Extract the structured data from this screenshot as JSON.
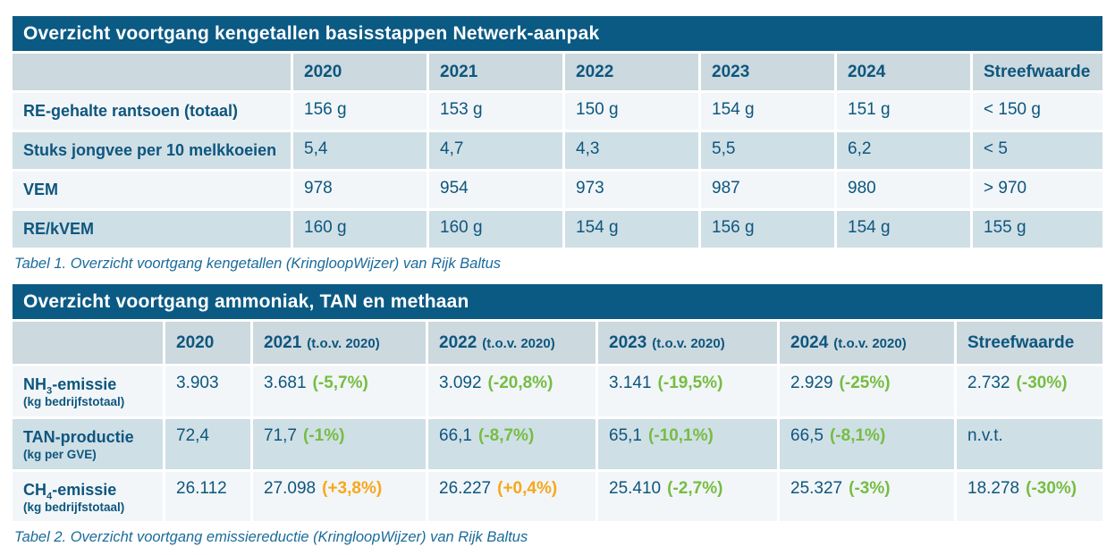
{
  "colors": {
    "title_bar_bg": "#0b5a84",
    "header_row_bg": "#ccd9df",
    "row_dark_bg": "#cfdfe6",
    "row_light_bg": "#f2f6f8",
    "text_blue": "#0e567e",
    "delta_good_green": "#76bd43",
    "delta_bad_orange": "#f7a71c",
    "caption_blue": "#1a6b9b"
  },
  "table1": {
    "title": "Overzicht voortgang kengetallen basisstappen Netwerk-aanpak",
    "columns": [
      "",
      "2020",
      "2021",
      "2022",
      "2023",
      "2024",
      "Streefwaarde"
    ],
    "rows": [
      {
        "label": "RE-gehalte rantsoen (totaal)",
        "values": [
          "156 g",
          "153 g",
          "150 g",
          "154 g",
          "151 g",
          "< 150 g"
        ]
      },
      {
        "label": "Stuks jongvee per 10 melkkoeien",
        "values": [
          "5,4",
          "4,7",
          "4,3",
          "5,5",
          "6,2",
          "< 5"
        ]
      },
      {
        "label": "VEM",
        "values": [
          "978",
          "954",
          "973",
          "987",
          "980",
          "> 970"
        ]
      },
      {
        "label": "RE/kVEM",
        "values": [
          "160 g",
          "160 g",
          "154 g",
          "156 g",
          "154 g",
          "155 g"
        ]
      }
    ],
    "caption": "Tabel 1. Overzicht voortgang kengetallen (KringloopWijzer) van Rijk Baltus"
  },
  "table2": {
    "title": "Overzicht voortgang ammoniak, TAN en methaan",
    "columns": [
      {
        "year": "",
        "note": ""
      },
      {
        "year": "2020",
        "note": ""
      },
      {
        "year": "2021",
        "note": "(t.o.v. 2020)"
      },
      {
        "year": "2022",
        "note": "(t.o.v. 2020)"
      },
      {
        "year": "2023",
        "note": "(t.o.v. 2020)"
      },
      {
        "year": "2024",
        "note": "(t.o.v. 2020)"
      },
      {
        "year": "Streefwaarde",
        "note": ""
      }
    ],
    "rows": [
      {
        "label_pre": "NH",
        "label_sub": "3",
        "label_post": "-emissie",
        "label_unit": "(kg bedrijfstotaal)",
        "cells": [
          {
            "v": "3.903",
            "d": "",
            "trend": ""
          },
          {
            "v": "3.681",
            "d": "(-5,7%)",
            "trend": "good"
          },
          {
            "v": "3.092",
            "d": "(-20,8%)",
            "trend": "good"
          },
          {
            "v": "3.141",
            "d": "(-19,5%)",
            "trend": "good"
          },
          {
            "v": "2.929",
            "d": "(-25%)",
            "trend": "good"
          },
          {
            "v": "2.732",
            "d": "(-30%)",
            "trend": "good"
          }
        ]
      },
      {
        "label_pre": "TAN-productie",
        "label_sub": "",
        "label_post": "",
        "label_unit": "(kg per GVE)",
        "cells": [
          {
            "v": "72,4",
            "d": "",
            "trend": ""
          },
          {
            "v": "71,7",
            "d": "(-1%)",
            "trend": "good"
          },
          {
            "v": "66,1",
            "d": "(-8,7%)",
            "trend": "good"
          },
          {
            "v": "65,1",
            "d": "(-10,1%)",
            "trend": "good"
          },
          {
            "v": "66,5",
            "d": "(-8,1%)",
            "trend": "good"
          },
          {
            "v": "n.v.t.",
            "d": "",
            "trend": ""
          }
        ]
      },
      {
        "label_pre": "CH",
        "label_sub": "4",
        "label_post": "-emissie",
        "label_unit": "(kg bedrijfstotaal)",
        "cells": [
          {
            "v": "26.112",
            "d": "",
            "trend": ""
          },
          {
            "v": "27.098",
            "d": "(+3,8%)",
            "trend": "bad"
          },
          {
            "v": "26.227",
            "d": "(+0,4%)",
            "trend": "bad"
          },
          {
            "v": "25.410",
            "d": "(-2,7%)",
            "trend": "good"
          },
          {
            "v": "25.327",
            "d": "(-3%)",
            "trend": "good"
          },
          {
            "v": "18.278",
            "d": "(-30%)",
            "trend": "good"
          }
        ]
      }
    ],
    "caption": "Tabel 2. Overzicht voortgang emissiereductie (KringloopWijzer) van Rijk Baltus"
  }
}
